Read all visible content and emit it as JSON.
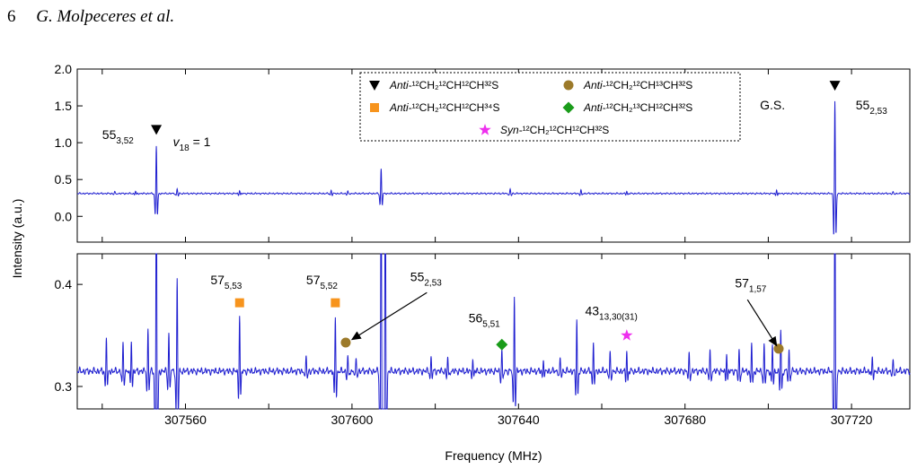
{
  "header": {
    "page_number": "6",
    "authors": "G. Molpeceres et al."
  },
  "chart_data": {
    "type": "line",
    "xlabel": "Frequency (MHz)",
    "ylabel": "Intensity (a.u.)",
    "xlim": [
      307534,
      307734
    ],
    "x_ticks": [
      307560,
      307600,
      307640,
      307680,
      307720
    ],
    "panels": [
      {
        "name": "top",
        "ylim": [
          -0.35,
          2.0
        ],
        "y_ticks": [
          "2.0",
          "1.5",
          "1.0",
          "0.5",
          "0.0"
        ],
        "y_tick_values": [
          2.0,
          1.5,
          1.0,
          0.5,
          0.0
        ],
        "baseline": 0.31,
        "lines": [
          {
            "x": 307553,
            "amp": 0.65
          },
          {
            "x": 307607,
            "amp": 0.33
          },
          {
            "x": 307716,
            "amp": 1.25
          }
        ],
        "small_lines": [
          {
            "x": 307543,
            "amp": 0.03
          },
          {
            "x": 307548,
            "amp": 0.03
          },
          {
            "x": 307558,
            "amp": 0.06
          },
          {
            "x": 307573,
            "amp": 0.04
          },
          {
            "x": 307595,
            "amp": 0.04
          },
          {
            "x": 307599,
            "amp": 0.03
          },
          {
            "x": 307638,
            "amp": 0.06
          },
          {
            "x": 307655,
            "amp": 0.04
          },
          {
            "x": 307666,
            "amp": 0.03
          },
          {
            "x": 307702,
            "amp": 0.05
          },
          {
            "x": 307730,
            "amp": 0.02
          }
        ]
      },
      {
        "name": "bottom",
        "ylim": [
          0.278,
          0.43
        ],
        "y_ticks": [
          "0.4",
          "0.3"
        ],
        "y_tick_values": [
          0.4,
          0.3
        ],
        "baseline": 0.315,
        "lines": [
          {
            "x": 307541,
            "amp": 0.035
          },
          {
            "x": 307545,
            "amp": 0.027
          },
          {
            "x": 307547,
            "amp": 0.03
          },
          {
            "x": 307551,
            "amp": 0.04
          },
          {
            "x": 307553,
            "amp": 0.4
          },
          {
            "x": 307556,
            "amp": 0.038
          },
          {
            "x": 307558,
            "amp": 0.09
          },
          {
            "x": 307573,
            "amp": 0.055
          },
          {
            "x": 307589,
            "amp": 0.015
          },
          {
            "x": 307596,
            "amp": 0.052
          },
          {
            "x": 307599,
            "amp": 0.014
          },
          {
            "x": 307601,
            "amp": 0.012
          },
          {
            "x": 307607,
            "amp": 0.4
          },
          {
            "x": 307608,
            "amp": 0.4
          },
          {
            "x": 307619,
            "amp": 0.012
          },
          {
            "x": 307623,
            "amp": 0.014
          },
          {
            "x": 307629,
            "amp": 0.012
          },
          {
            "x": 307636,
            "amp": 0.022
          },
          {
            "x": 307639,
            "amp": 0.075
          },
          {
            "x": 307646,
            "amp": 0.013
          },
          {
            "x": 307650,
            "amp": 0.012
          },
          {
            "x": 307654,
            "amp": 0.05
          },
          {
            "x": 307658,
            "amp": 0.03
          },
          {
            "x": 307662,
            "amp": 0.018
          },
          {
            "x": 307666,
            "amp": 0.02
          },
          {
            "x": 307681,
            "amp": 0.017
          },
          {
            "x": 307686,
            "amp": 0.02
          },
          {
            "x": 307690,
            "amp": 0.018
          },
          {
            "x": 307693,
            "amp": 0.02
          },
          {
            "x": 307696,
            "amp": 0.03
          },
          {
            "x": 307699,
            "amp": 0.025
          },
          {
            "x": 307701,
            "amp": 0.025
          },
          {
            "x": 307703,
            "amp": 0.04
          },
          {
            "x": 307705,
            "amp": 0.02
          },
          {
            "x": 307716,
            "amp": 0.4
          },
          {
            "x": 307725,
            "amp": 0.012
          },
          {
            "x": 307730,
            "amp": 0.01
          }
        ]
      }
    ],
    "legend": {
      "placement": "top-center",
      "entries": [
        {
          "marker": "triangle-down",
          "color": "#000000",
          "prefix": "Anti",
          "label": "-¹²CH₂¹²CH¹²CH³²S"
        },
        {
          "marker": "circle",
          "color": "#9c7a2a",
          "prefix": "Anti",
          "label": "-¹²CH₂¹²CH¹³CH³²S"
        },
        {
          "marker": "square",
          "color": "#f7941d",
          "prefix": "Anti",
          "label": "-¹²CH₂¹²CH¹²CH³⁴S"
        },
        {
          "marker": "diamond",
          "color": "#1a9c1a",
          "prefix": "Anti",
          "label": "-¹²CH₂¹³CH¹²CH³²S"
        },
        {
          "marker": "star",
          "color": "#ee2fee",
          "prefix": "Syn",
          "label": "-¹²CH₂¹²CH¹²CH³²S"
        }
      ]
    },
    "top_markers": [
      {
        "x": 307553,
        "y": 1.18,
        "marker": "triangle-down",
        "color": "#000000"
      },
      {
        "x": 307716,
        "y": 1.78,
        "marker": "triangle-down",
        "color": "#000000"
      }
    ],
    "bottom_markers": [
      {
        "x": 307573,
        "y": 0.382,
        "marker": "square",
        "color": "#f7941d"
      },
      {
        "x": 307596,
        "y": 0.382,
        "marker": "square",
        "color": "#f7941d"
      },
      {
        "x": 307598.5,
        "y": 0.343,
        "marker": "circle",
        "color": "#9c7a2a"
      },
      {
        "x": 307636,
        "y": 0.341,
        "marker": "diamond",
        "color": "#1a9c1a"
      },
      {
        "x": 307666,
        "y": 0.35,
        "marker": "star",
        "color": "#ee2fee"
      },
      {
        "x": 307702.5,
        "y": 0.337,
        "marker": "circle",
        "color": "#9c7a2a"
      }
    ],
    "annotations": [
      {
        "panel": "top",
        "main": "55",
        "sub": "3,52",
        "x": 307540,
        "y": 1.05
      },
      {
        "panel": "top",
        "main": "v",
        "sub": "18",
        "tail": " = 1",
        "x": 307557,
        "y": 0.95,
        "italic": true
      },
      {
        "panel": "top",
        "main": "G.S.",
        "sub": "",
        "x": 307698,
        "y": 1.45
      },
      {
        "panel": "top",
        "main": "55",
        "sub": "2,53",
        "x": 307721,
        "y": 1.45
      },
      {
        "panel": "bottom",
        "main": "57",
        "sub": "5,53",
        "x": 307566,
        "y": 0.4
      },
      {
        "panel": "bottom",
        "main": "57",
        "sub": "5,52",
        "x": 307589,
        "y": 0.4
      },
      {
        "panel": "bottom",
        "main": "55",
        "sub": "2,53",
        "x": 307614,
        "y": 0.403
      },
      {
        "panel": "bottom",
        "main": "56",
        "sub": "5,51",
        "x": 307628,
        "y": 0.363
      },
      {
        "panel": "bottom",
        "main": "43",
        "sub": "13,30(31)",
        "x": 307656,
        "y": 0.37
      },
      {
        "panel": "bottom",
        "main": "57",
        "sub": "1,57",
        "x": 307692,
        "y": 0.397
      }
    ],
    "arrows": [
      {
        "from": [
          307618,
          0.392
        ],
        "to": [
          307600,
          0.346
        ]
      },
      {
        "from": [
          307695,
          0.385
        ],
        "to": [
          307702,
          0.34
        ]
      }
    ]
  }
}
